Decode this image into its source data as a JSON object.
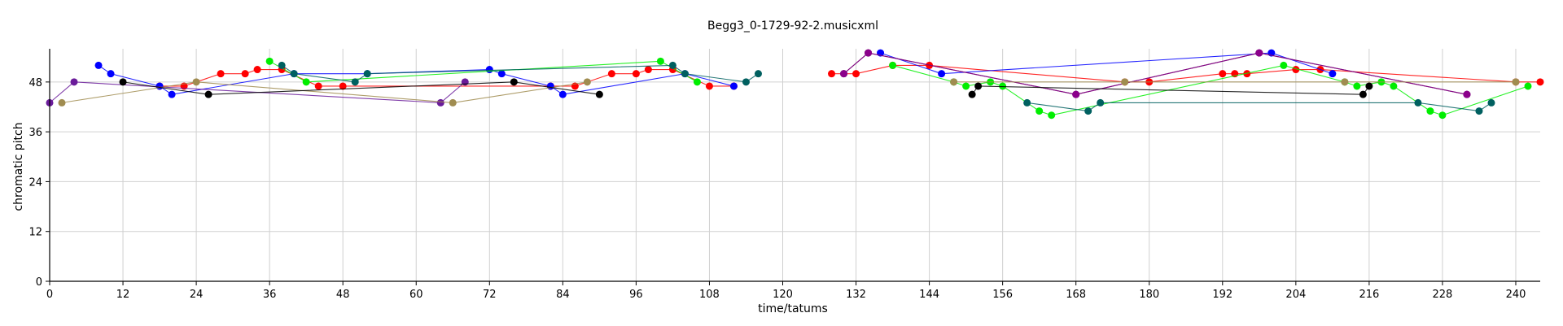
{
  "chart_data": {
    "type": "line",
    "title": "Begg3_0-1729-92-2.musicxml",
    "xlabel": "time/tatums",
    "ylabel": "chromatic pitch",
    "xlim": [
      0,
      244
    ],
    "ylim": [
      0,
      56
    ],
    "xticks": [
      0,
      12,
      24,
      36,
      48,
      60,
      72,
      84,
      96,
      108,
      120,
      132,
      144,
      156,
      168,
      180,
      192,
      204,
      216,
      228,
      240
    ],
    "yticks": [
      0,
      12,
      24,
      36,
      48
    ],
    "grid": true,
    "series": [
      {
        "color": "#ff0000",
        "points": [
          [
            18,
            47
          ],
          [
            22,
            47
          ],
          [
            28,
            50
          ],
          [
            32,
            50
          ],
          [
            34,
            51
          ],
          [
            38,
            51
          ],
          [
            44,
            47
          ],
          [
            48,
            47
          ],
          [
            82,
            47
          ],
          [
            86,
            47
          ],
          [
            92,
            50
          ],
          [
            96,
            50
          ],
          [
            98,
            51
          ],
          [
            102,
            51
          ],
          [
            108,
            47
          ],
          [
            112,
            47
          ]
        ]
      },
      {
        "color": "#0000ff",
        "points": [
          [
            8,
            52
          ],
          [
            10,
            50
          ],
          [
            18,
            47
          ],
          [
            20,
            45
          ],
          [
            40,
            50
          ],
          [
            52,
            50
          ],
          [
            72,
            51
          ],
          [
            74,
            50
          ],
          [
            82,
            47
          ],
          [
            84,
            45
          ],
          [
            104,
            50
          ],
          [
            112,
            47
          ]
        ]
      },
      {
        "color": "#00ee00",
        "points": [
          [
            36,
            53
          ],
          [
            42,
            48
          ],
          [
            100,
            53
          ],
          [
            106,
            48
          ]
        ]
      },
      {
        "color": "#6a1b9a",
        "points": [
          [
            0,
            43
          ],
          [
            4,
            48
          ],
          [
            64,
            43
          ],
          [
            68,
            48
          ]
        ]
      },
      {
        "color": "#a08c50",
        "points": [
          [
            2,
            43
          ],
          [
            24,
            48
          ],
          [
            66,
            43
          ],
          [
            88,
            48
          ]
        ]
      },
      {
        "color": "#006060",
        "points": [
          [
            38,
            52
          ],
          [
            40,
            50
          ],
          [
            50,
            48
          ],
          [
            52,
            50
          ],
          [
            102,
            52
          ],
          [
            104,
            50
          ],
          [
            114,
            48
          ],
          [
            116,
            50
          ]
        ]
      },
      {
        "color": "#000000",
        "points": [
          [
            12,
            48
          ],
          [
            26,
            45
          ],
          [
            76,
            48
          ],
          [
            90,
            45
          ]
        ]
      },
      {
        "color": "#ff0000",
        "points": [
          [
            128,
            50
          ],
          [
            132,
            50
          ],
          [
            138,
            52
          ],
          [
            144,
            52
          ],
          [
            176,
            48
          ],
          [
            180,
            48
          ],
          [
            192,
            50
          ],
          [
            194,
            50
          ],
          [
            196,
            50
          ],
          [
            204,
            51
          ],
          [
            208,
            51
          ],
          [
            240,
            48
          ],
          [
            244,
            48
          ]
        ]
      },
      {
        "color": "#0000ff",
        "points": [
          [
            136,
            55
          ],
          [
            146,
            50
          ],
          [
            200,
            55
          ],
          [
            210,
            50
          ]
        ]
      },
      {
        "color": "#00ee00",
        "points": [
          [
            138,
            52
          ],
          [
            148,
            48
          ],
          [
            150,
            47
          ],
          [
            154,
            48
          ],
          [
            156,
            47
          ],
          [
            162,
            41
          ],
          [
            164,
            40
          ],
          [
            202,
            52
          ],
          [
            212,
            48
          ],
          [
            214,
            47
          ],
          [
            218,
            48
          ],
          [
            220,
            47
          ],
          [
            226,
            41
          ],
          [
            228,
            40
          ],
          [
            242,
            47
          ]
        ]
      },
      {
        "color": "#4a0048",
        "points": [
          [
            130,
            50
          ],
          [
            134,
            55
          ],
          [
            168,
            45
          ],
          [
            198,
            55
          ],
          [
            232,
            45
          ]
        ]
      },
      {
        "color": "#8b008b",
        "points": [
          [
            130,
            50
          ],
          [
            134,
            55
          ],
          [
            168,
            45
          ],
          [
            198,
            55
          ],
          [
            232,
            45
          ]
        ]
      },
      {
        "color": "#006060",
        "points": [
          [
            160,
            43
          ],
          [
            170,
            41
          ],
          [
            172,
            43
          ],
          [
            224,
            43
          ],
          [
            234,
            41
          ],
          [
            236,
            43
          ]
        ]
      },
      {
        "color": "#000000",
        "points": [
          [
            151,
            45
          ],
          [
            152,
            47
          ],
          [
            215,
            45
          ],
          [
            216,
            47
          ]
        ]
      },
      {
        "color": "#a08c50",
        "points": [
          [
            148,
            48
          ],
          [
            176,
            48
          ],
          [
            212,
            48
          ],
          [
            240,
            48
          ]
        ]
      }
    ]
  }
}
